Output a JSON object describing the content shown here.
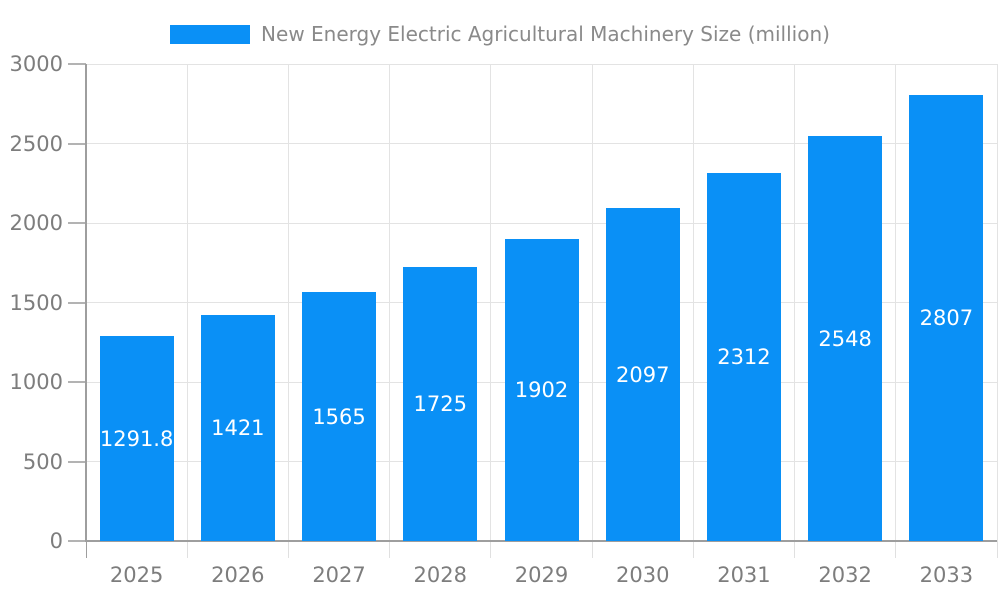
{
  "chart_data": {
    "type": "bar",
    "title": "New Energy Electric Agricultural Machinery Size (million)",
    "legend": [
      "New Energy Electric Agricultural Machinery Size (million)"
    ],
    "legend_position": "top-center",
    "categories": [
      "2025",
      "2026",
      "2027",
      "2028",
      "2029",
      "2030",
      "2031",
      "2032",
      "2033"
    ],
    "values": [
      1291.8,
      1421,
      1565,
      1725,
      1902,
      2097,
      2312,
      2548,
      2807
    ],
    "value_labels": [
      "1291.8",
      "1421",
      "1565",
      "1725",
      "1902",
      "2097",
      "2312",
      "2548",
      "2807"
    ],
    "xlabel": "",
    "ylabel": "",
    "ylim": [
      0,
      3000
    ],
    "y_ticks": [
      "0",
      "500",
      "1000",
      "1500",
      "2000",
      "2500",
      "3000"
    ],
    "grid": true,
    "bar_color": "#0a90f6",
    "bar_label_color": "#ffffff"
  }
}
